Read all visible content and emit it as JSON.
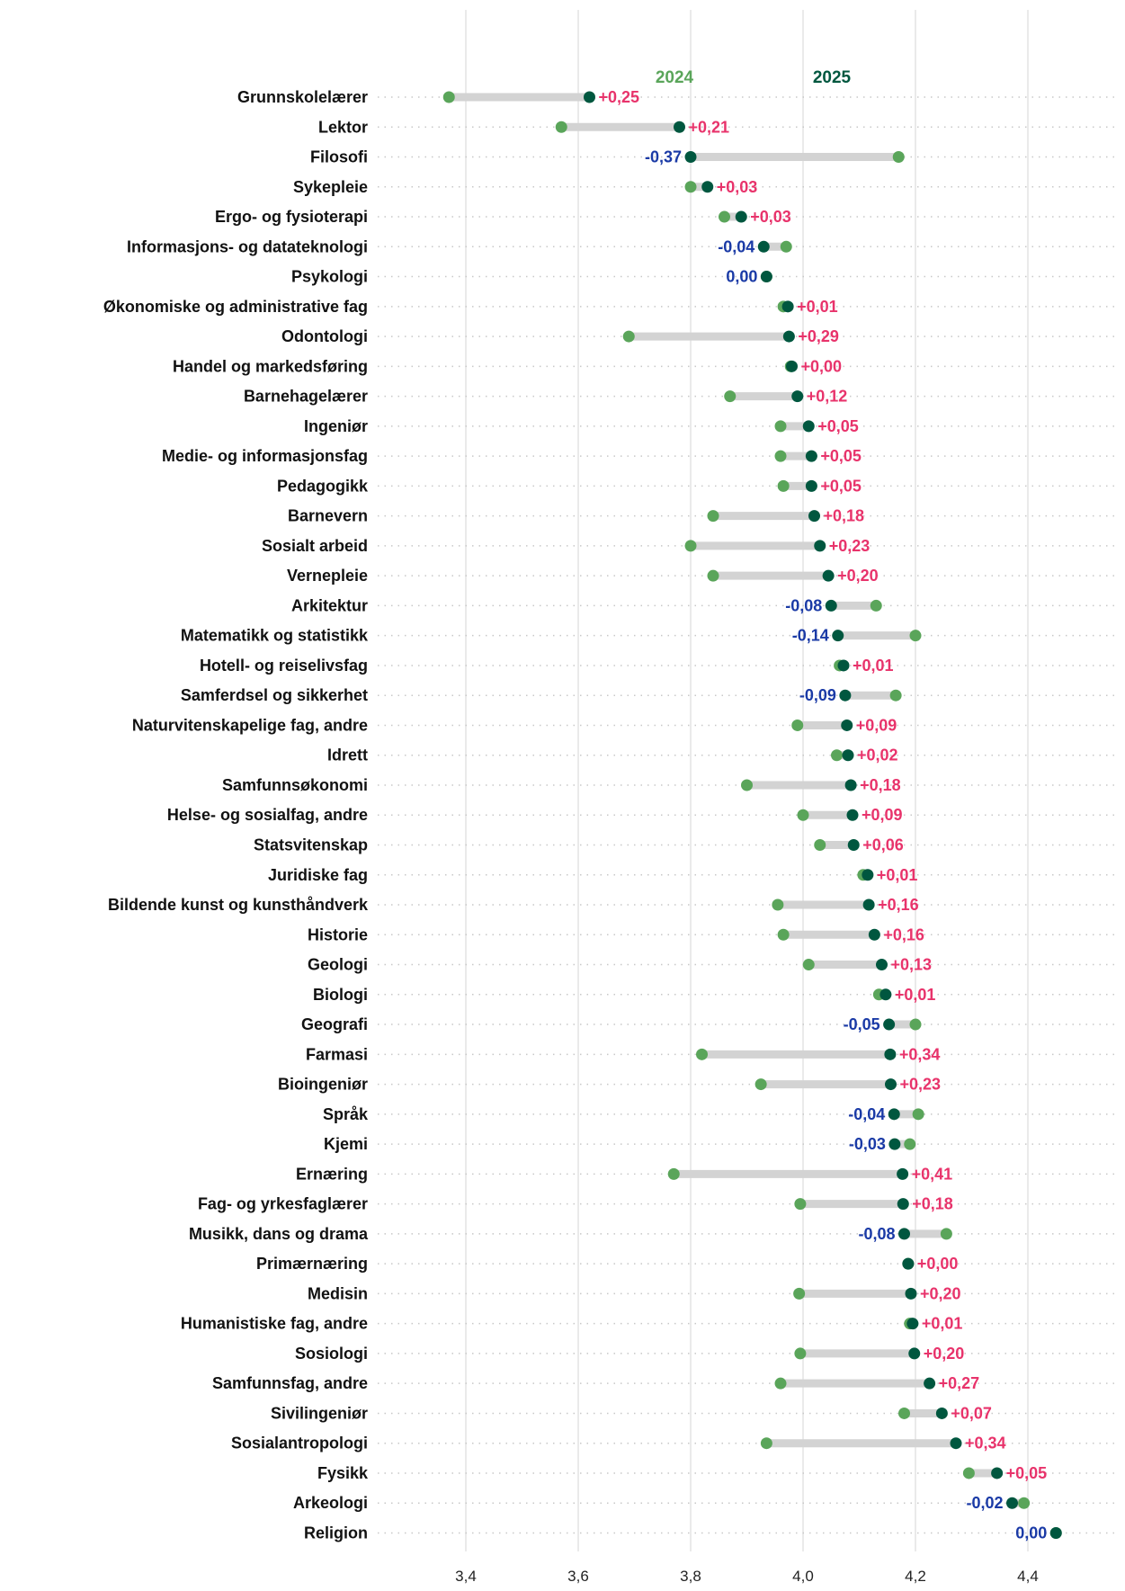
{
  "chart_data": {
    "type": "dumbbell",
    "title": "",
    "xlabel": "",
    "ylabel": "",
    "xlim": [
      3.3,
      4.5
    ],
    "x_ticks": [
      "3,4",
      "3,6",
      "3,8",
      "4,0",
      "4,2",
      "4,4"
    ],
    "x_tick_values": [
      3.4,
      3.6,
      3.8,
      4.0,
      4.2,
      4.4
    ],
    "grid": "vertical gridlines at ticks, dotted horizontal row guides",
    "legend": "top, series labels above first row",
    "series": [
      {
        "name": "2024",
        "color": "#5aa55a"
      },
      {
        "name": "2025",
        "color": "#00573f"
      }
    ],
    "colors": {
      "bar": "#d3d3d3",
      "positive": "#e8336b",
      "negative": "#1a3aa6",
      "grid": "#e3e3e3",
      "guide": "#c8c8c8"
    },
    "categories": [
      "Grunnskolelærer",
      "Lektor",
      "Filosofi",
      "Sykepleie",
      "Ergo- og fysioterapi",
      "Informasjons- og datateknologi",
      "Psykologi",
      "Økonomiske og administrative fag",
      "Odontologi",
      "Handel og markedsføring",
      "Barnehagelærer",
      "Ingeniør",
      "Medie- og informasjonsfag",
      "Pedagogikk",
      "Barnevern",
      "Sosialt arbeid",
      "Vernepleie",
      "Arkitektur",
      "Matematikk og statistikk",
      "Hotell- og reiselivsfag",
      "Samferdsel og sikkerhet",
      "Naturvitenskapelige fag, andre",
      "Idrett",
      "Samfunnsøkonomi",
      "Helse- og sosialfag, andre",
      "Statsvitenskap",
      "Juridiske fag",
      "Bildende kunst og kunsthåndverk",
      "Historie",
      "Geologi",
      "Biologi",
      "Geografi",
      "Farmasi",
      "Bioingeniør",
      "Språk",
      "Kjemi",
      "Ernæring",
      "Fag- og yrkesfaglærer",
      "Musikk, dans og drama",
      "Primærnæring",
      "Medisin",
      "Humanistiske fag, andre",
      "Sosiologi",
      "Samfunnsfag, andre",
      "Sivilingeniør",
      "Sosialantropologi",
      "Fysikk",
      "Arkeologi",
      "Religion"
    ],
    "values_2024": [
      3.37,
      3.57,
      4.17,
      3.8,
      3.86,
      3.97,
      3.935,
      3.965,
      3.69,
      3.978,
      3.87,
      3.96,
      3.96,
      3.965,
      3.84,
      3.8,
      3.84,
      4.13,
      4.2,
      4.065,
      4.165,
      3.99,
      4.06,
      3.9,
      4.0,
      4.03,
      4.107,
      3.955,
      3.965,
      4.01,
      4.135,
      4.2,
      3.82,
      3.925,
      4.205,
      4.19,
      3.77,
      3.995,
      4.255,
      4.187,
      3.993,
      4.19,
      3.995,
      3.96,
      4.18,
      3.935,
      4.295,
      4.393,
      4.45
    ],
    "values_2025": [
      3.62,
      3.78,
      3.8,
      3.83,
      3.89,
      3.93,
      3.935,
      3.973,
      3.975,
      3.98,
      3.99,
      4.01,
      4.015,
      4.015,
      4.02,
      4.03,
      4.045,
      4.05,
      4.062,
      4.072,
      4.075,
      4.078,
      4.08,
      4.085,
      4.088,
      4.09,
      4.115,
      4.117,
      4.127,
      4.14,
      4.147,
      4.153,
      4.155,
      4.156,
      4.162,
      4.163,
      4.177,
      4.178,
      4.18,
      4.187,
      4.192,
      4.195,
      4.198,
      4.225,
      4.247,
      4.272,
      4.345,
      4.372,
      4.45
    ],
    "diff_labels": [
      "+0,25",
      "+0,21",
      "-0,37",
      "+0,03",
      "+0,03",
      "-0,04",
      "0,00",
      "+0,01",
      "+0,29",
      "+0,00",
      "+0,12",
      "+0,05",
      "+0,05",
      "+0,05",
      "+0,18",
      "+0,23",
      "+0,20",
      "-0,08",
      "-0,14",
      "+0,01",
      "-0,09",
      "+0,09",
      "+0,02",
      "+0,18",
      "+0,09",
      "+0,06",
      "+0,01",
      "+0,16",
      "+0,16",
      "+0,13",
      "+0,01",
      "-0,05",
      "+0,34",
      "+0,23",
      "-0,04",
      "-0,03",
      "+0,41",
      "+0,18",
      "-0,08",
      "+0,00",
      "+0,20",
      "+0,01",
      "+0,20",
      "+0,27",
      "+0,07",
      "+0,34",
      "+0,05",
      "-0,02",
      "0,00"
    ]
  }
}
